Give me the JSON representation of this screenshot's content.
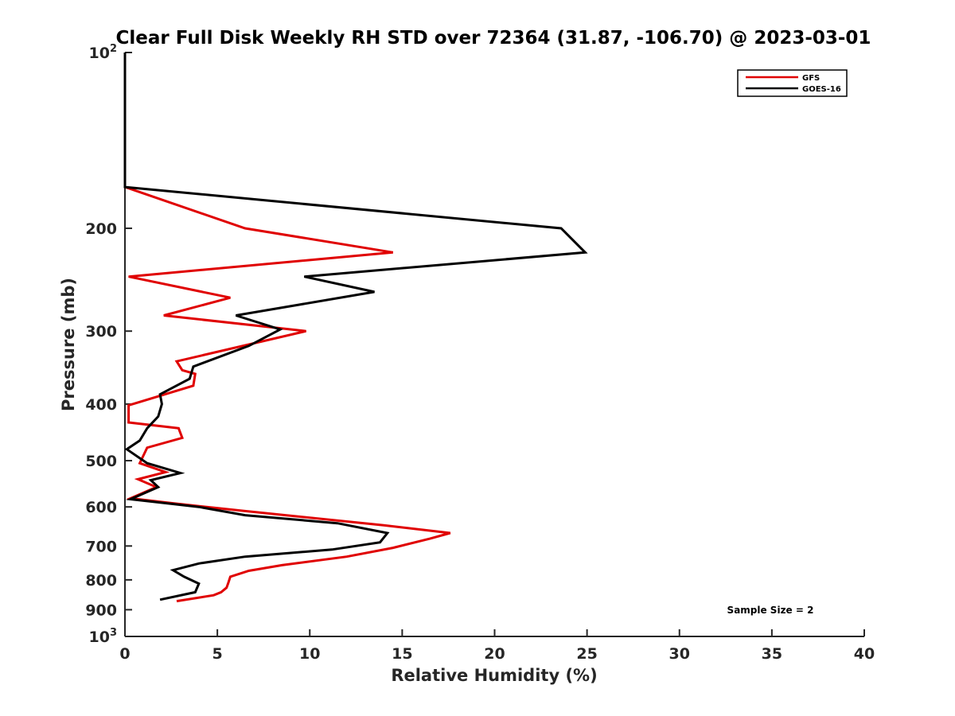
{
  "chart_data": {
    "type": "line",
    "title": "Clear Full Disk Weekly RH STD over 72364 (31.87, -106.70) @ 2023-03-01",
    "xlabel": "Relative Humidity (%)",
    "ylabel": "Pressure (mb)",
    "xlim": [
      0,
      40
    ],
    "ylim": [
      100,
      1000
    ],
    "y_scale": "log",
    "y_reversed": true,
    "x_ticks": [
      "0",
      "5",
      "10",
      "15",
      "20",
      "25",
      "30",
      "35",
      "40"
    ],
    "y_ticks": [
      {
        "value": 100,
        "base": "10",
        "exp": "2"
      },
      {
        "value": 200,
        "label": "200"
      },
      {
        "value": 300,
        "label": "300"
      },
      {
        "value": 400,
        "label": "400"
      },
      {
        "value": 500,
        "label": "500"
      },
      {
        "value": 600,
        "label": "600"
      },
      {
        "value": 700,
        "label": "700"
      },
      {
        "value": 800,
        "label": "800"
      },
      {
        "value": 900,
        "label": "900"
      },
      {
        "value": 1000,
        "base": "10",
        "exp": "3"
      }
    ],
    "grid": false,
    "legend_position": "top-right",
    "annotation": "Sample Size = 2",
    "series": [
      {
        "name": "GFS",
        "color": "#e00000",
        "points": [
          [
            0,
            100
          ],
          [
            0,
            170
          ],
          [
            6.5,
            200
          ],
          [
            14.5,
            220
          ],
          [
            0.2,
            242
          ],
          [
            5.7,
            263
          ],
          [
            2.1,
            282
          ],
          [
            9.8,
            300
          ],
          [
            2.8,
            338
          ],
          [
            3.1,
            350
          ],
          [
            3.8,
            355
          ],
          [
            3.7,
            372
          ],
          [
            0.2,
            402
          ],
          [
            0.2,
            430
          ],
          [
            2.9,
            440
          ],
          [
            3.1,
            457
          ],
          [
            1.2,
            475
          ],
          [
            0.8,
            505
          ],
          [
            2.2,
            523
          ],
          [
            0.7,
            538
          ],
          [
            1.7,
            555
          ],
          [
            0.3,
            580
          ],
          [
            2.7,
            592
          ],
          [
            6.5,
            610
          ],
          [
            14.0,
            645
          ],
          [
            17.6,
            665
          ],
          [
            16.5,
            680
          ],
          [
            14.5,
            705
          ],
          [
            12.0,
            730
          ],
          [
            8.5,
            755
          ],
          [
            6.7,
            772
          ],
          [
            5.7,
            790
          ],
          [
            5.6,
            808
          ],
          [
            5.5,
            825
          ],
          [
            5.2,
            840
          ],
          [
            4.8,
            850
          ],
          [
            2.8,
            870
          ]
        ]
      },
      {
        "name": "GOES-16",
        "color": "#000000",
        "points": [
          [
            0,
            100
          ],
          [
            0,
            170
          ],
          [
            23.6,
            200
          ],
          [
            24.9,
            220
          ],
          [
            9.7,
            242
          ],
          [
            13.5,
            257
          ],
          [
            6.0,
            282
          ],
          [
            8.4,
            298
          ],
          [
            6.7,
            318
          ],
          [
            3.7,
            345
          ],
          [
            3.5,
            362
          ],
          [
            1.9,
            385
          ],
          [
            2.0,
            400
          ],
          [
            1.8,
            420
          ],
          [
            1.2,
            440
          ],
          [
            0.8,
            462
          ],
          [
            0.1,
            478
          ],
          [
            1.2,
            505
          ],
          [
            3.0,
            525
          ],
          [
            1.4,
            540
          ],
          [
            1.8,
            555
          ],
          [
            0.3,
            582
          ],
          [
            4.0,
            600
          ],
          [
            6.5,
            620
          ],
          [
            11.5,
            640
          ],
          [
            14.2,
            665
          ],
          [
            13.8,
            690
          ],
          [
            11.2,
            710
          ],
          [
            6.5,
            730
          ],
          [
            4.0,
            750
          ],
          [
            2.6,
            770
          ],
          [
            3.2,
            790
          ],
          [
            4.0,
            812
          ],
          [
            3.8,
            840
          ],
          [
            1.9,
            865
          ]
        ]
      }
    ]
  }
}
